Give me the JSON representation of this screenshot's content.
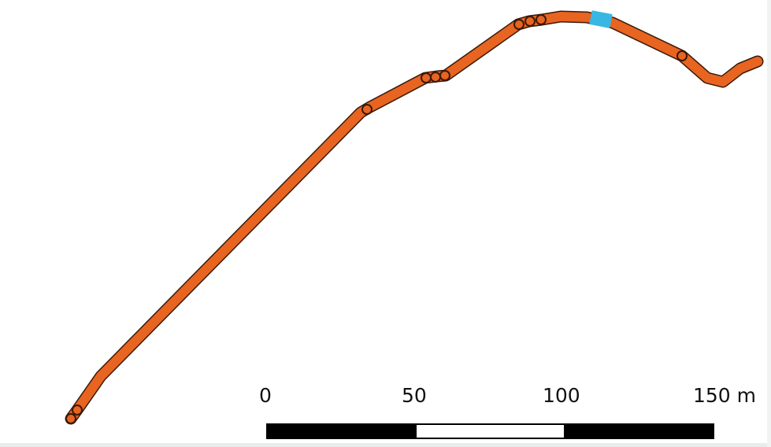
{
  "map": {
    "track": {
      "fill_color": "#e86421",
      "outline_color": "#3a1a08",
      "highlight_color": "#38b7e3"
    }
  },
  "scale_bar": {
    "labels": [
      "0",
      "50",
      "100",
      "150 m"
    ],
    "segment_colors": [
      "#000000",
      "#ffffff",
      "#000000"
    ]
  }
}
